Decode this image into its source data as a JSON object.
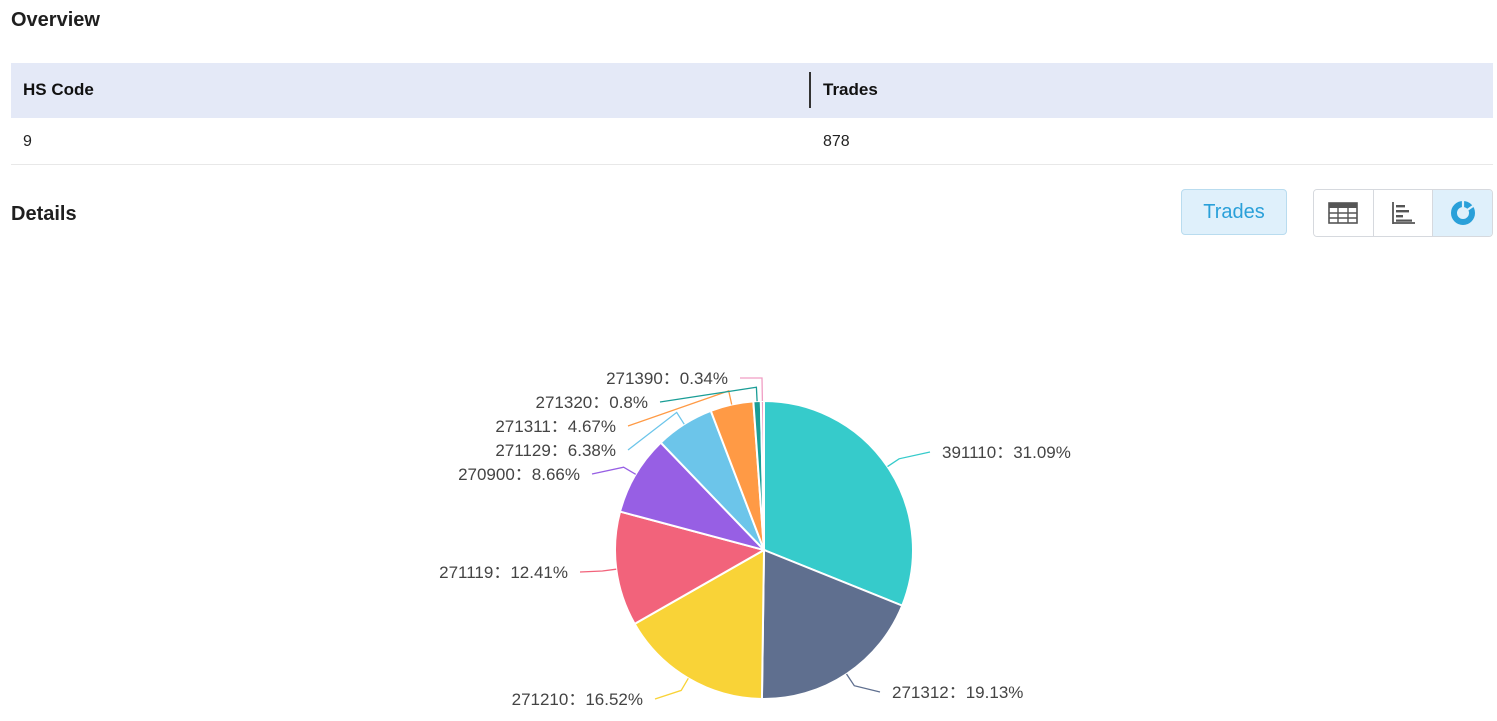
{
  "overview": {
    "title": "Overview",
    "columns": [
      "HS Code",
      "Trades"
    ],
    "rows": [
      [
        "9",
        "878"
      ]
    ]
  },
  "details": {
    "title": "Details",
    "metric_button": "Trades",
    "view_buttons": [
      {
        "name": "table-view",
        "icon": "table-icon",
        "active": false
      },
      {
        "name": "bar-view",
        "icon": "bar-chart-icon",
        "active": false
      },
      {
        "name": "pie-view",
        "icon": "donut-chart-icon",
        "active": true
      }
    ]
  },
  "chart_data": {
    "type": "pie",
    "title": "",
    "label_separator": "：",
    "slices": [
      {
        "label": "391110",
        "value": 31.09,
        "display": "31.09%",
        "color": "#36cbcb"
      },
      {
        "label": "271312",
        "value": 19.13,
        "display": "19.13%",
        "color": "#5f6f8f"
      },
      {
        "label": "271210",
        "value": 16.52,
        "display": "16.52%",
        "color": "#f9d337"
      },
      {
        "label": "271119",
        "value": 12.41,
        "display": "12.41%",
        "color": "#f2637b"
      },
      {
        "label": "270900",
        "value": 8.66,
        "display": "8.66%",
        "color": "#975fe4"
      },
      {
        "label": "271129",
        "value": 6.38,
        "display": "6.38%",
        "color": "#6cc5ea"
      },
      {
        "label": "271311",
        "value": 4.67,
        "display": "4.67%",
        "color": "#ff9a45"
      },
      {
        "label": "271320",
        "value": 0.8,
        "display": "0.8%",
        "color": "#1a9d96"
      },
      {
        "label": "271390",
        "value": 0.34,
        "display": "0.34%",
        "color": "#f09ec4"
      }
    ]
  }
}
